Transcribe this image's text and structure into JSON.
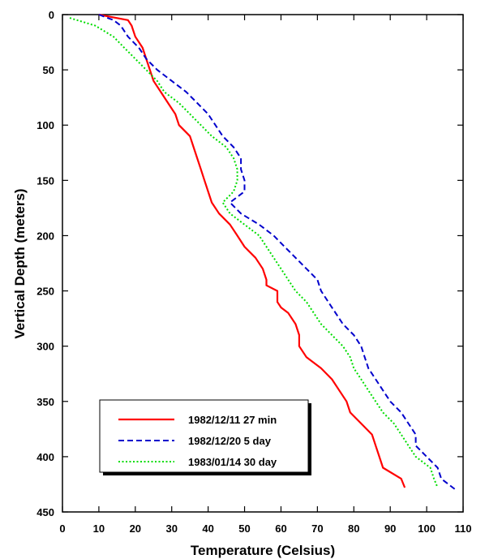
{
  "chart_data": {
    "type": "line",
    "title": "",
    "xlabel": "Temperature (Celsius)",
    "ylabel": "Vertical Depth (meters)",
    "xlim": [
      0,
      110
    ],
    "ylim": [
      0,
      450
    ],
    "y_inverted": true,
    "x_ticks": [
      "0",
      "10",
      "20",
      "30",
      "40",
      "50",
      "60",
      "70",
      "80",
      "90",
      "100",
      "110"
    ],
    "y_ticks": [
      "0",
      "50",
      "100",
      "150",
      "200",
      "250",
      "300",
      "350",
      "400",
      "450"
    ],
    "grid": false,
    "legend_position": "bottom-left",
    "series": [
      {
        "name": "1982/12/11 27 min",
        "color": "#ff0000",
        "dash": "solid",
        "points": [
          [
            10,
            0
          ],
          [
            18,
            5
          ],
          [
            19,
            10
          ],
          [
            20,
            20
          ],
          [
            22,
            30
          ],
          [
            23,
            40
          ],
          [
            24,
            50
          ],
          [
            25,
            60
          ],
          [
            27,
            70
          ],
          [
            29,
            80
          ],
          [
            31,
            90
          ],
          [
            32,
            100
          ],
          [
            35,
            110
          ],
          [
            36,
            120
          ],
          [
            37,
            130
          ],
          [
            38,
            140
          ],
          [
            39,
            150
          ],
          [
            40,
            160
          ],
          [
            41,
            170
          ],
          [
            43,
            180
          ],
          [
            46,
            190
          ],
          [
            48,
            200
          ],
          [
            50,
            210
          ],
          [
            53,
            220
          ],
          [
            55,
            230
          ],
          [
            56,
            240
          ],
          [
            56,
            245
          ],
          [
            59,
            250
          ],
          [
            59,
            260
          ],
          [
            60,
            265
          ],
          [
            62,
            270
          ],
          [
            64,
            280
          ],
          [
            65,
            290
          ],
          [
            65,
            300
          ],
          [
            67,
            310
          ],
          [
            71,
            320
          ],
          [
            74,
            330
          ],
          [
            76,
            340
          ],
          [
            78,
            350
          ],
          [
            79,
            360
          ],
          [
            82,
            370
          ],
          [
            85,
            380
          ],
          [
            86,
            390
          ],
          [
            87,
            400
          ],
          [
            88,
            410
          ],
          [
            93,
            420
          ],
          [
            94,
            428
          ]
        ]
      },
      {
        "name": "1982/12/20 5 day",
        "color": "#0000cc",
        "dash": "dashed",
        "points": [
          [
            10,
            0
          ],
          [
            14,
            5
          ],
          [
            16,
            10
          ],
          [
            18,
            20
          ],
          [
            21,
            30
          ],
          [
            23,
            40
          ],
          [
            26,
            50
          ],
          [
            30,
            60
          ],
          [
            34,
            70
          ],
          [
            37,
            80
          ],
          [
            40,
            90
          ],
          [
            42,
            100
          ],
          [
            44,
            110
          ],
          [
            47,
            120
          ],
          [
            49,
            130
          ],
          [
            49,
            140
          ],
          [
            50,
            150
          ],
          [
            50,
            160
          ],
          [
            46,
            170
          ],
          [
            49,
            180
          ],
          [
            54,
            190
          ],
          [
            58,
            200
          ],
          [
            61,
            210
          ],
          [
            64,
            220
          ],
          [
            67,
            230
          ],
          [
            70,
            240
          ],
          [
            71,
            250
          ],
          [
            73,
            260
          ],
          [
            75,
            270
          ],
          [
            77,
            280
          ],
          [
            80,
            290
          ],
          [
            82,
            300
          ],
          [
            83,
            310
          ],
          [
            84,
            320
          ],
          [
            86,
            330
          ],
          [
            88,
            340
          ],
          [
            90,
            350
          ],
          [
            93,
            360
          ],
          [
            95,
            370
          ],
          [
            97,
            380
          ],
          [
            97,
            390
          ],
          [
            100,
            400
          ],
          [
            103,
            410
          ],
          [
            104,
            420
          ],
          [
            108,
            430
          ]
        ]
      },
      {
        "name": "1983/01/14 30 day",
        "color": "#00dd00",
        "dash": "dotted",
        "points": [
          [
            2,
            3
          ],
          [
            9,
            10
          ],
          [
            14,
            20
          ],
          [
            17,
            30
          ],
          [
            20,
            40
          ],
          [
            23,
            50
          ],
          [
            26,
            60
          ],
          [
            28,
            70
          ],
          [
            32,
            80
          ],
          [
            35,
            90
          ],
          [
            38,
            100
          ],
          [
            41,
            110
          ],
          [
            45,
            120
          ],
          [
            47,
            130
          ],
          [
            48,
            140
          ],
          [
            48,
            150
          ],
          [
            47,
            160
          ],
          [
            44,
            170
          ],
          [
            46,
            180
          ],
          [
            50,
            190
          ],
          [
            54,
            200
          ],
          [
            56,
            210
          ],
          [
            58,
            220
          ],
          [
            60,
            230
          ],
          [
            62,
            240
          ],
          [
            64,
            250
          ],
          [
            67,
            260
          ],
          [
            69,
            270
          ],
          [
            71,
            280
          ],
          [
            74,
            290
          ],
          [
            77,
            300
          ],
          [
            79,
            310
          ],
          [
            80,
            320
          ],
          [
            82,
            330
          ],
          [
            84,
            340
          ],
          [
            86,
            350
          ],
          [
            88,
            360
          ],
          [
            91,
            370
          ],
          [
            93,
            380
          ],
          [
            95,
            390
          ],
          [
            97,
            400
          ],
          [
            101,
            410
          ],
          [
            102,
            420
          ],
          [
            103,
            428
          ]
        ]
      }
    ]
  }
}
